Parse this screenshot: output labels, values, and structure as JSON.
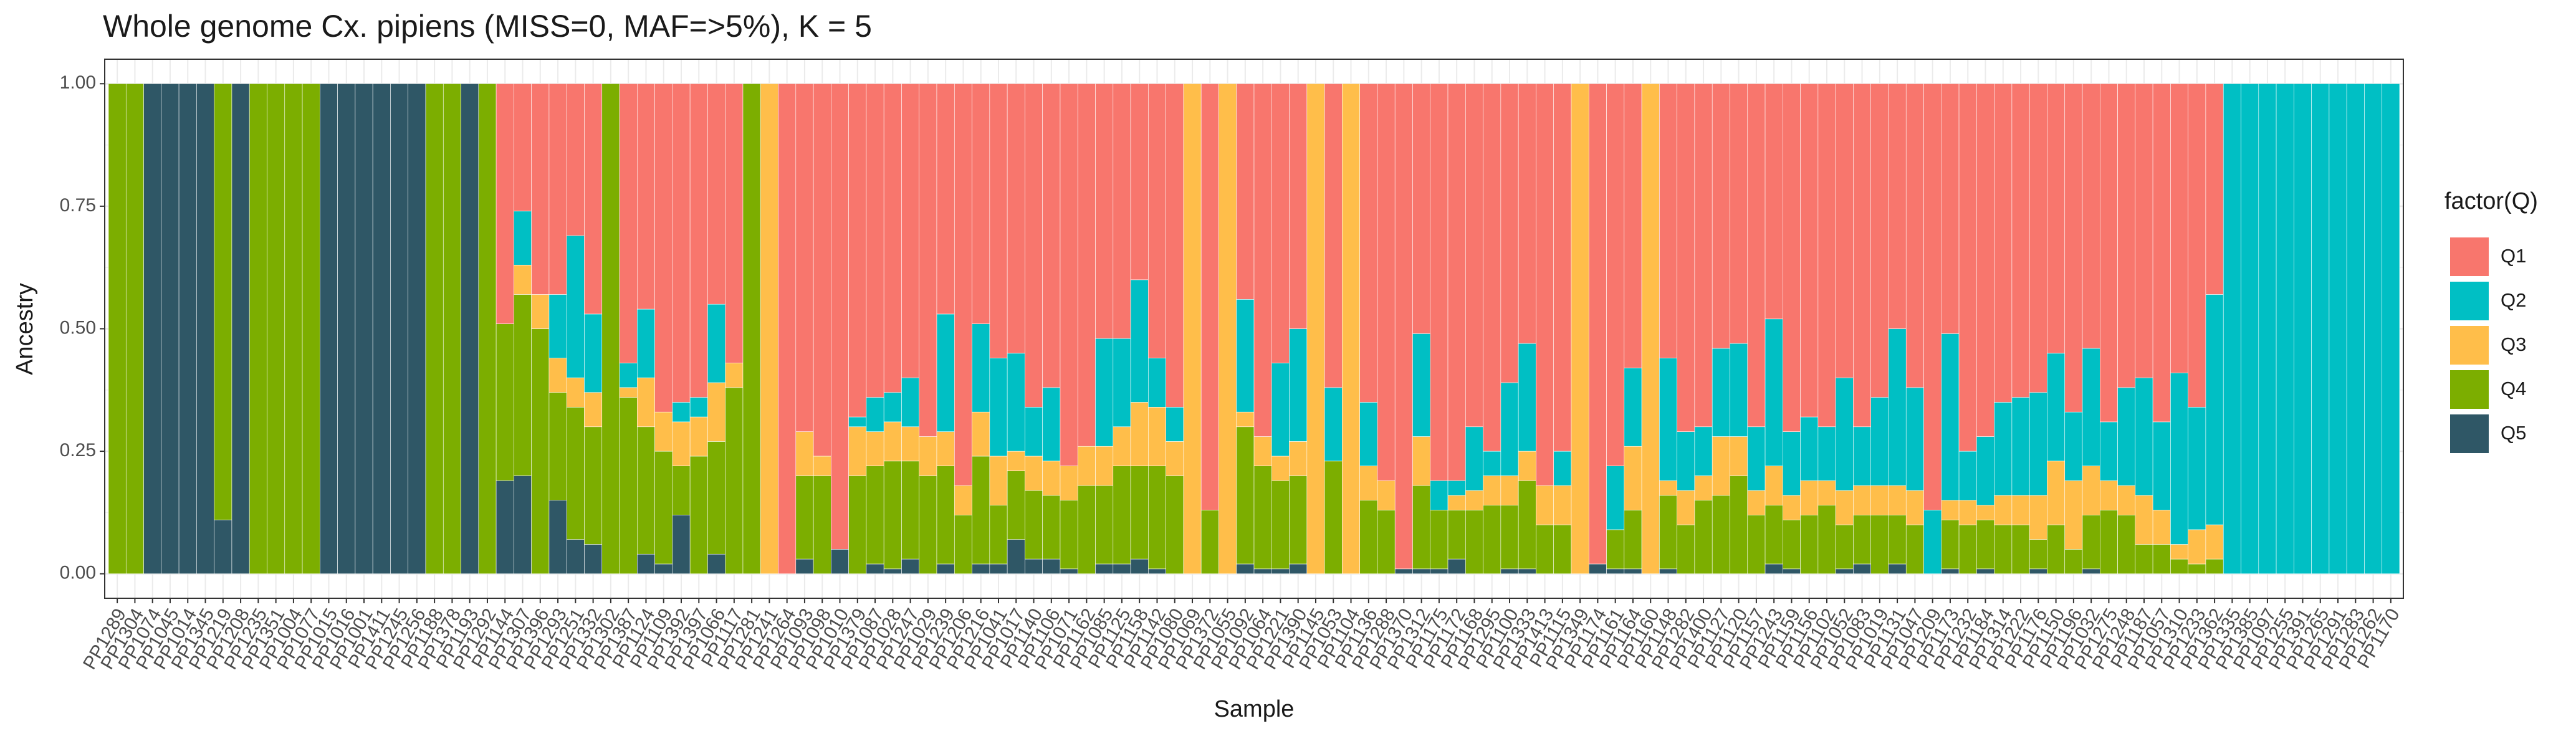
{
  "chart_data": {
    "type": "stacked_bar",
    "title": "Whole genome Cx. pipiens (MISS=0, MAF=>5%), K = 5",
    "x_label": "Sample",
    "y_label": "Ancestry",
    "legend_title": "factor(Q)",
    "legend": "right",
    "grid": true,
    "ylim": [
      -0.05,
      1.05
    ],
    "yticks": [
      {
        "value": 0,
        "label": "0.00"
      },
      {
        "value": 0.25,
        "label": "0.25"
      },
      {
        "value": 0.5,
        "label": "0.50"
      },
      {
        "value": 0.75,
        "label": "0.75"
      },
      {
        "value": 1,
        "label": "1.00"
      }
    ],
    "categories": [
      "PP1289",
      "PP1304",
      "PP1074",
      "PP1045",
      "PP1014",
      "PP1345",
      "PP1219",
      "PP1208",
      "PP1235",
      "PP1351",
      "PP1004",
      "PP1077",
      "PP1015",
      "PP1016",
      "PP1001",
      "PP1411",
      "PP1245",
      "PP1256",
      "PP1188",
      "PP1378",
      "PP1193",
      "PP1292",
      "PP1144",
      "PP1307",
      "PP1396",
      "PP1293",
      "PP1251",
      "PP1332",
      "PP1302",
      "PP1387",
      "PP1124",
      "PP1109",
      "PP1392",
      "PP1397",
      "PP1066",
      "PP1117",
      "PP1281",
      "PP1241",
      "PP1264",
      "PP1093",
      "PP1098",
      "PP1010",
      "PP1379",
      "PP1087",
      "PP1028",
      "PP1247",
      "PP1029",
      "PP1239",
      "PP1206",
      "PP1216",
      "PP1041",
      "PP1017",
      "PP1140",
      "PP1106",
      "PP1071",
      "PP1162",
      "PP1085",
      "PP1125",
      "PP1158",
      "PP1142",
      "PP1080",
      "PP1069",
      "PP1372",
      "PP1055",
      "PP1092",
      "PP1064",
      "PP1221",
      "PP1390",
      "PP1145",
      "PP1053",
      "PP1104",
      "PP1136",
      "PP1288",
      "PP1370",
      "PP1312",
      "PP1175",
      "PP1172",
      "PP1168",
      "PP1295",
      "PP1100",
      "PP1333",
      "PP1413",
      "PP1115",
      "PP1349",
      "PP1174",
      "PP1161",
      "PP1164",
      "PP1160",
      "PP1148",
      "PP1282",
      "PP1400",
      "PP1127",
      "PP1120",
      "PP1157",
      "PP1243",
      "PP1159",
      "PP1156",
      "PP1102",
      "PP1052",
      "PP1083",
      "PP1019",
      "PP1131",
      "PP1047",
      "PP1209",
      "PP1173",
      "PP1232",
      "PP1184",
      "PP1314",
      "PP1222",
      "PP1176",
      "PP1150",
      "PP1196",
      "PP1032",
      "PP1275",
      "PP1248",
      "PP1187",
      "PP1057",
      "PP1310",
      "PP1233",
      "PP1362",
      "PP1335",
      "PP1385",
      "PP1097",
      "PP1255",
      "PP1391",
      "PP1265",
      "PP1291",
      "PP1283",
      "PP1262",
      "PP1170"
    ],
    "series": [
      {
        "name": "Q1",
        "color": "#F8766D",
        "values": [
          0,
          0,
          0,
          0,
          0,
          0,
          0,
          0,
          0,
          0,
          0,
          0,
          0,
          0,
          0,
          0,
          0,
          0,
          0,
          0,
          0,
          0,
          0.49,
          0.26,
          0.43,
          0.43,
          0.31,
          0.47,
          0,
          0.57,
          0.46,
          0.67,
          0.65,
          0.64,
          0.45,
          0.57,
          0,
          0,
          1,
          0.71,
          0.76,
          0.95,
          0.68,
          0.64,
          0.63,
          0.6,
          0.72,
          0.47,
          0.82,
          0.49,
          0.56,
          0.55,
          0.66,
          0.62,
          0.78,
          0.74,
          0.52,
          0.52,
          0.4,
          0.56,
          0.66,
          0,
          0.87,
          0,
          0.44,
          0.72,
          0.57,
          0.5,
          0,
          0.62,
          0,
          0.65,
          0.81,
          0.99,
          0.51,
          0.81,
          0.81,
          0.7,
          0.75,
          0.61,
          0.53,
          0.82,
          0.75,
          0,
          0.98,
          0.78,
          0.58,
          0,
          0.56,
          0.71,
          0.7,
          0.54,
          0.53,
          0.7,
          0.48,
          0.71,
          0.68,
          0.7,
          0.6,
          0.7,
          0.64,
          0.5,
          0.62,
          0.87,
          0.51,
          0.75,
          0.72,
          0.65,
          0.64,
          0.63,
          0.55,
          0.67,
          0.54,
          0.69,
          0.62,
          0.6,
          0.69,
          0.59,
          0.66,
          0.43,
          0,
          0,
          0,
          0,
          0,
          0,
          0,
          0,
          0,
          0
        ]
      },
      {
        "name": "Q2",
        "color": "#00BFC4",
        "values": [
          0,
          0,
          0,
          0,
          0,
          0,
          0,
          0,
          0,
          0,
          0,
          0,
          0,
          0,
          0,
          0,
          0,
          0,
          0,
          0,
          0,
          0,
          0,
          0.11,
          0,
          0.13,
          0.29,
          0.16,
          0,
          0.05,
          0.14,
          0,
          0.04,
          0.04,
          0.16,
          0,
          0,
          0,
          0,
          0,
          0,
          0,
          0.02,
          0.07,
          0.06,
          0.1,
          0,
          0.24,
          0,
          0.18,
          0.2,
          0.2,
          0.1,
          0.15,
          0,
          0,
          0.22,
          0.18,
          0.25,
          0.1,
          0.07,
          0,
          0,
          0,
          0.23,
          0,
          0.19,
          0.23,
          0,
          0.15,
          0,
          0.13,
          0,
          0,
          0.21,
          0.06,
          0.03,
          0.13,
          0.05,
          0.19,
          0.22,
          0,
          0.07,
          0,
          0,
          0.13,
          0.16,
          0,
          0.25,
          0.12,
          0.1,
          0.18,
          0.19,
          0.13,
          0.3,
          0.13,
          0.13,
          0.11,
          0.23,
          0.12,
          0.18,
          0.32,
          0.21,
          0.13,
          0.34,
          0.1,
          0.14,
          0.19,
          0.2,
          0.21,
          0.22,
          0.14,
          0.24,
          0.12,
          0.2,
          0.24,
          0.18,
          0.35,
          0.25,
          0.47,
          1,
          1,
          1,
          1,
          1,
          1,
          1,
          1,
          1,
          1
        ]
      },
      {
        "name": "Q3",
        "color": "#FFBE4A",
        "values": [
          0,
          0,
          0,
          0,
          0,
          0,
          0,
          0,
          0,
          0,
          0,
          0,
          0,
          0,
          0,
          0,
          0,
          0,
          0,
          0,
          0,
          0,
          0,
          0.06,
          0.07,
          0.07,
          0.06,
          0.07,
          0,
          0.02,
          0.1,
          0.08,
          0.09,
          0.08,
          0.12,
          0.05,
          0,
          1,
          0,
          0.09,
          0.04,
          0,
          0.1,
          0.07,
          0.08,
          0.07,
          0.08,
          0.07,
          0.06,
          0.09,
          0.1,
          0.04,
          0.07,
          0.07,
          0.07,
          0.08,
          0.08,
          0.08,
          0.13,
          0.12,
          0.07,
          1,
          0,
          1,
          0.03,
          0.06,
          0.05,
          0.07,
          1,
          0,
          1,
          0.07,
          0.06,
          0,
          0.1,
          0,
          0.03,
          0.04,
          0.06,
          0.06,
          0.06,
          0.08,
          0.08,
          1,
          0,
          0,
          0.13,
          1,
          0.03,
          0.07,
          0.05,
          0.12,
          0.08,
          0.05,
          0.08,
          0.05,
          0.07,
          0.05,
          0.07,
          0.06,
          0.06,
          0.06,
          0.07,
          0,
          0.04,
          0.05,
          0.03,
          0.06,
          0.06,
          0.09,
          0.13,
          0.14,
          0.1,
          0.06,
          0.06,
          0.1,
          0.07,
          0.03,
          0.07,
          0.07,
          0,
          0,
          0,
          0,
          0,
          0,
          0,
          0,
          0,
          0
        ]
      },
      {
        "name": "Q4",
        "color": "#7CAE00",
        "values": [
          1,
          1,
          0,
          0,
          0,
          0,
          0.89,
          0,
          1,
          1,
          1,
          1,
          0,
          0,
          0,
          0,
          0,
          0,
          1,
          1,
          0,
          1,
          0.32,
          0.37,
          0.5,
          0.22,
          0.27,
          0.24,
          1,
          0.36,
          0.26,
          0.23,
          0.1,
          0.24,
          0.23,
          0.38,
          1,
          0,
          0,
          0.17,
          0.2,
          0,
          0.2,
          0.2,
          0.22,
          0.2,
          0.2,
          0.2,
          0.12,
          0.22,
          0.12,
          0.14,
          0.14,
          0.13,
          0.14,
          0.18,
          0.16,
          0.2,
          0.19,
          0.21,
          0.2,
          0,
          0.13,
          0,
          0.28,
          0.21,
          0.18,
          0.18,
          0,
          0.23,
          0,
          0.15,
          0.13,
          0,
          0.17,
          0.12,
          0.1,
          0.13,
          0.14,
          0.13,
          0.18,
          0.1,
          0.1,
          0,
          0,
          0.08,
          0.12,
          0,
          0.15,
          0.1,
          0.15,
          0.16,
          0.2,
          0.12,
          0.12,
          0.1,
          0.12,
          0.14,
          0.09,
          0.1,
          0.12,
          0.1,
          0.1,
          0,
          0.1,
          0.1,
          0.1,
          0.1,
          0.1,
          0.06,
          0.1,
          0.05,
          0.11,
          0.13,
          0.12,
          0.06,
          0.06,
          0.03,
          0.02,
          0.03,
          0,
          0,
          0,
          0,
          0,
          0,
          0,
          0,
          0,
          0
        ]
      },
      {
        "name": "Q5",
        "color": "#2F5766",
        "values": [
          0,
          0,
          1,
          1,
          1,
          1,
          0.11,
          1,
          0,
          0,
          0,
          0,
          1,
          1,
          1,
          1,
          1,
          1,
          0,
          0,
          1,
          0,
          0.19,
          0.2,
          0,
          0.15,
          0.07,
          0.06,
          0,
          0,
          0.04,
          0.02,
          0.12,
          0,
          0.04,
          0,
          0,
          0,
          0,
          0.03,
          0,
          0.05,
          0,
          0.02,
          0.01,
          0.03,
          0,
          0.02,
          0,
          0.02,
          0.02,
          0.07,
          0.03,
          0.03,
          0.01,
          0,
          0.02,
          0.02,
          0.03,
          0.01,
          0,
          0,
          0,
          0,
          0.02,
          0.01,
          0.01,
          0.02,
          0,
          0,
          0,
          0,
          0,
          0.01,
          0.01,
          0.01,
          0.03,
          0,
          0,
          0.01,
          0.01,
          0,
          0,
          0,
          0.02,
          0.01,
          0.01,
          0,
          0.01,
          0,
          0,
          0,
          0,
          0,
          0.02,
          0.01,
          0,
          0,
          0.01,
          0.02,
          0,
          0.02,
          0,
          0,
          0.01,
          0,
          0.01,
          0,
          0,
          0.01,
          0,
          0,
          0.01,
          0,
          0,
          0,
          0,
          0,
          0,
          0,
          0,
          0,
          0,
          0,
          0,
          0,
          0,
          0,
          0,
          0
        ]
      }
    ]
  }
}
